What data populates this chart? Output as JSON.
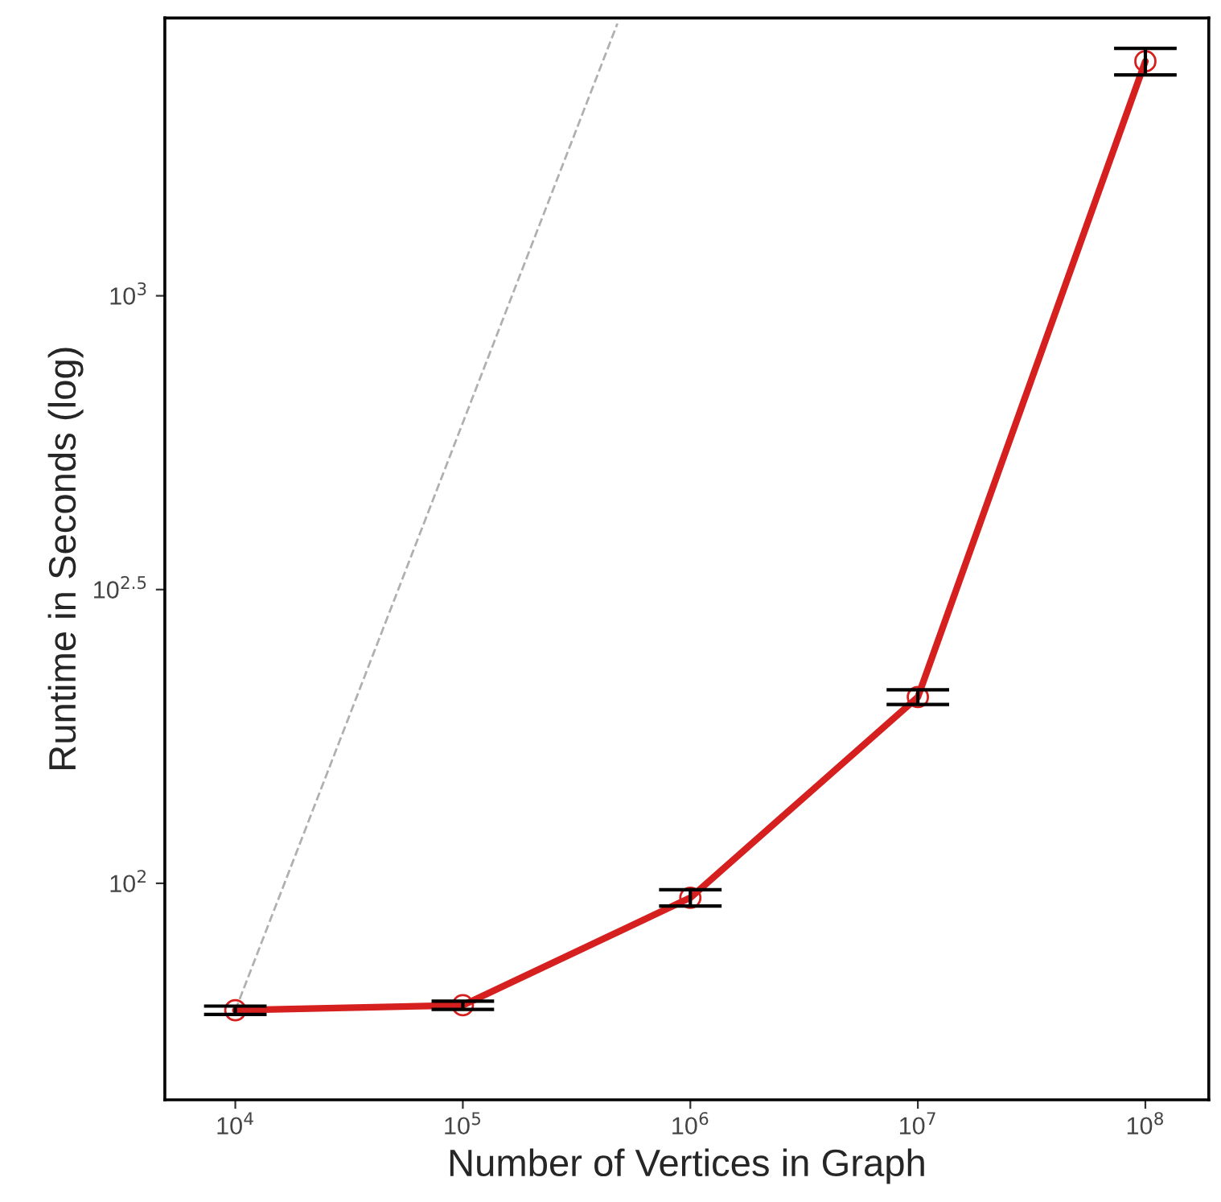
{
  "chart_data": {
    "type": "line",
    "xlabel": "Number of Vertices in Graph",
    "ylabel": "Runtime in Seconds (log)",
    "log": "xy",
    "grid": false,
    "legend": false,
    "xlim": [
      4900,
      190000000
    ],
    "ylim": [
      42.8,
      2970
    ],
    "xticks": [
      {
        "value": 10000,
        "label": "10$^{4}$"
      },
      {
        "value": 100000,
        "label": "10$^{5}$"
      },
      {
        "value": 1000000,
        "label": "10$^{6}$"
      },
      {
        "value": 10000000,
        "label": "10$^{7}$"
      },
      {
        "value": 100000000,
        "label": "10$^{8}$"
      }
    ],
    "yticks": [
      {
        "value": 100,
        "label": "10$^{2}$"
      },
      {
        "value": 316.2,
        "label": "10$^{2.5}$"
      },
      {
        "value": 1000,
        "label": "10$^{3}$"
      }
    ],
    "series": [
      {
        "color": "#d61f1f",
        "marker": "circle",
        "line_style": "solid",
        "x": [
          10000,
          100000,
          1000000,
          10000000,
          100000000
        ],
        "values": [
          60.8,
          62,
          94.5,
          207.5,
          2507
        ],
        "errors": [
          1,
          1,
          3,
          6,
          130
        ]
      },
      {
        "color": "#b0b0b0",
        "marker": "none",
        "line_style": "dashed",
        "x": [
          10000,
          478000
        ],
        "values": [
          60.8,
          2906
        ]
      }
    ]
  }
}
